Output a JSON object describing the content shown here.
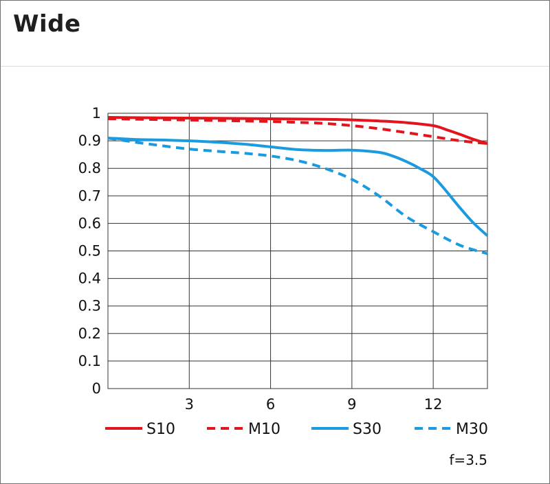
{
  "header": {
    "title": "Wide"
  },
  "chart_data": {
    "type": "line",
    "title": "Wide",
    "xlabel": "",
    "ylabel": "",
    "xlim": [
      0,
      14
    ],
    "ylim": [
      0,
      1
    ],
    "xticks": [
      3,
      6,
      9,
      12
    ],
    "yticks": [
      0,
      0.1,
      0.2,
      0.3,
      0.4,
      0.5,
      0.6,
      0.7,
      0.8,
      0.9,
      1
    ],
    "ytick_labels": [
      "0",
      "0.1",
      "0.2",
      "0.3",
      "0.4",
      "0.5",
      "0.6",
      "0.7",
      "0.8",
      "0.9",
      "1"
    ],
    "grid": true,
    "legend_position": "bottom",
    "annotation": "f=3.5",
    "series": [
      {
        "name": "S10",
        "color": "#e3141b",
        "dash": "solid",
        "x": [
          0,
          2,
          4,
          6,
          8,
          9,
          10,
          11,
          12,
          12.5,
          13,
          13.5,
          14
        ],
        "y": [
          0.985,
          0.983,
          0.982,
          0.98,
          0.978,
          0.976,
          0.972,
          0.966,
          0.955,
          0.94,
          0.923,
          0.905,
          0.89
        ]
      },
      {
        "name": "M10",
        "color": "#e3141b",
        "dash": "dashed",
        "x": [
          0,
          2,
          4,
          6,
          7,
          8,
          9,
          10,
          11,
          12,
          13,
          14
        ],
        "y": [
          0.98,
          0.977,
          0.974,
          0.97,
          0.967,
          0.963,
          0.955,
          0.944,
          0.93,
          0.915,
          0.9,
          0.89
        ]
      },
      {
        "name": "S30",
        "color": "#1a9be0",
        "dash": "solid",
        "x": [
          0,
          1,
          2,
          3,
          4,
          5,
          6,
          7,
          8,
          9,
          10,
          10.5,
          11,
          11.5,
          12,
          12.5,
          13,
          13.5,
          14
        ],
        "y": [
          0.91,
          0.905,
          0.903,
          0.9,
          0.895,
          0.888,
          0.878,
          0.868,
          0.865,
          0.866,
          0.858,
          0.845,
          0.825,
          0.8,
          0.77,
          0.715,
          0.655,
          0.6,
          0.555
        ]
      },
      {
        "name": "M30",
        "color": "#1a9be0",
        "dash": "dashed",
        "x": [
          0,
          1,
          2,
          3,
          4,
          5,
          6,
          7,
          8,
          9,
          10,
          11,
          12,
          13,
          14
        ],
        "y": [
          0.91,
          0.895,
          0.882,
          0.87,
          0.862,
          0.855,
          0.845,
          0.828,
          0.8,
          0.76,
          0.7,
          0.625,
          0.57,
          0.52,
          0.49
        ]
      }
    ]
  }
}
